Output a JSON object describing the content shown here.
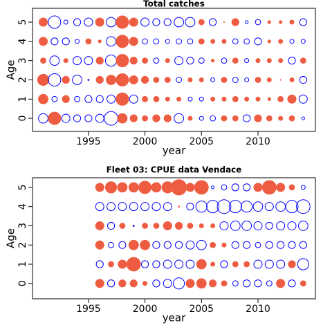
{
  "chart_data": [
    {
      "type": "bubble",
      "title": "Total catches",
      "x_label": "year",
      "y_label": "Age",
      "positive_color": "#EE5C42",
      "negative_color": "#0000FF",
      "x": [
        1991,
        1992,
        1993,
        1994,
        1995,
        1996,
        1997,
        1998,
        1999,
        2000,
        2001,
        2002,
        2003,
        2004,
        2005,
        2006,
        2007,
        2008,
        2009,
        2010,
        2011,
        2012,
        2013,
        2014
      ],
      "y": [
        0,
        1,
        2,
        3,
        4,
        5
      ],
      "values": [
        [
          -2.3,
          3,
          -2,
          -1.7,
          -1.7,
          -2,
          -3.3,
          2.3,
          1.7,
          1.3,
          1.7,
          1.7,
          -2.3,
          1,
          -1,
          -1.3,
          1.3,
          1.3,
          -1.7,
          1.7,
          1.3,
          1,
          1.3,
          -0.7
        ],
        [
          2.3,
          -1.3,
          1.7,
          -1.3,
          -1.7,
          -1.7,
          -2,
          3,
          -2,
          1.3,
          1.3,
          1,
          1,
          -1,
          -1,
          1,
          1,
          1.3,
          1,
          1,
          0.7,
          1.3,
          2,
          -2
        ],
        [
          2.7,
          -3,
          1.7,
          -2.3,
          -0.3,
          1.7,
          2.3,
          3,
          2,
          1.7,
          1.3,
          1.3,
          -1.3,
          1,
          1,
          -1,
          1.3,
          -1.3,
          -1,
          1.3,
          1,
          0.2,
          1,
          -1.7
        ],
        [
          1.3,
          -2.3,
          1,
          -2,
          -2,
          1.7,
          -2.7,
          3,
          1.7,
          1.3,
          -1.3,
          1,
          -2,
          -1.7,
          -1.3,
          0.7,
          -1.3,
          1.3,
          -1,
          1,
          1,
          1,
          -1.7,
          1.3
        ],
        [
          2,
          -1.7,
          -1.7,
          -1,
          1.3,
          0.7,
          -2.3,
          3,
          2,
          -1.3,
          -1.3,
          -1,
          -1.3,
          -1.3,
          1.3,
          1,
          1,
          -1.3,
          -1.3,
          -1.7,
          0.7,
          1,
          -1,
          -1
        ],
        [
          2,
          -3,
          -1,
          -1.7,
          -2,
          2,
          -2.3,
          3,
          2,
          -2,
          -1.7,
          -1.7,
          -2.3,
          -2.3,
          1.3,
          -1.7,
          0.2,
          1.7,
          -0.7,
          -1.3,
          0.7,
          0.7,
          1,
          -1.7
        ]
      ],
      "xlim": [
        1990.05,
        2015.08
      ],
      "ylim": [
        -0.68,
        5.72
      ],
      "xticks": [
        1995,
        2000,
        2005,
        2010
      ],
      "yticks": [
        0,
        1,
        2,
        3,
        4,
        5
      ]
    },
    {
      "type": "bubble",
      "title": "Fleet 03:  CPUE data Vendace",
      "x_label": "year",
      "y_label": "Age",
      "positive_color": "#EE5C42",
      "negative_color": "#0000FF",
      "x": [
        1996,
        1997,
        1998,
        1999,
        2000,
        2001,
        2002,
        2003,
        2004,
        2005,
        2006,
        2007,
        2008,
        2009,
        2010,
        2011,
        2012,
        2013,
        2014
      ],
      "y": [
        0,
        1,
        2,
        3,
        4,
        5
      ],
      "values": [
        [
          2,
          -1.7,
          1.7,
          1.7,
          1,
          -1.7,
          -2,
          -2.7,
          2,
          2.3,
          1.7,
          1.3,
          -1.3,
          -1.7,
          -1.7,
          -1.3,
          2,
          -1.7,
          1.3
        ],
        [
          -1.7,
          1.3,
          2,
          3.3,
          -1.7,
          -1.7,
          -2,
          -2,
          -2,
          2.3,
          1,
          -1.7,
          1.3,
          1.3,
          -2,
          -2,
          -2,
          1.7,
          -2.7
        ],
        [
          2,
          -1.3,
          -1.7,
          2.3,
          2.3,
          -1.7,
          -1.7,
          -1.7,
          -2,
          -2.3,
          1.3,
          1,
          -1.7,
          -1.7,
          -1.3,
          -1.7,
          -1.7,
          -1.7,
          -1.7
        ],
        [
          2,
          -1.7,
          1.3,
          -0.3,
          1.3,
          1.3,
          2,
          1.7,
          1.3,
          1,
          1,
          -2,
          -2.3,
          -2.3,
          -2,
          -1.7,
          -2,
          -2,
          -2.3
        ],
        [
          -2,
          -2,
          -2,
          -2,
          -2,
          -2,
          -2,
          0.3,
          -1.7,
          -2.7,
          -3,
          -3.3,
          -3,
          -2.7,
          -2.3,
          -2,
          -2.3,
          -3,
          -3.3
        ],
        [
          2,
          2.7,
          2.3,
          2.3,
          3,
          2.3,
          2.7,
          3.7,
          2,
          3.3,
          -0.7,
          -1.3,
          -1.7,
          -1.7,
          2,
          3.3,
          2,
          1.3,
          -1
        ]
      ],
      "xlim": [
        1990.05,
        2015.08
      ],
      "ylim": [
        -0.8,
        5.5
      ],
      "xticks": [
        1995,
        2000,
        2005,
        2010
      ],
      "yticks": [
        0,
        1,
        2,
        3,
        4,
        5
      ]
    }
  ]
}
